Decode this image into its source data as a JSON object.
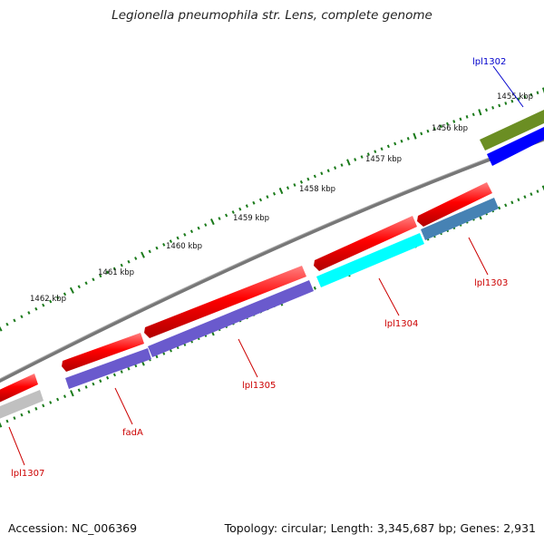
{
  "title": "Legionella pneumophila str. Lens, complete genome",
  "footer": {
    "accession": "Accession: NC_006369",
    "summary": "Topology: circular; Length: 3,345,687 bp; Genes: 2,931"
  },
  "scale_labels": [
    "1455 kbp",
    "1456 kbp",
    "1457 kbp",
    "1458 kbp",
    "1459 kbp",
    "1460 kbp",
    "1461 kbp",
    "1462 kbp"
  ],
  "gene_labels": [
    {
      "name": "lpl1302",
      "text": "lpl1302",
      "color": "#0000cc"
    },
    {
      "name": "lpl1303",
      "text": "lpl1303",
      "color": "#cc0000"
    },
    {
      "name": "lpl1304",
      "text": "lpl1304",
      "color": "#cc0000"
    },
    {
      "name": "lpl1305",
      "text": "lpl1305",
      "color": "#cc0000"
    },
    {
      "name": "fadA",
      "text": "fadA",
      "color": "#cc0000"
    },
    {
      "name": "lpl1307",
      "text": "lpl1307",
      "color": "#cc0000"
    }
  ],
  "colors": {
    "cds": "#ff0000",
    "backbone": "#777777",
    "ticks": "#1a7a1a",
    "gene_olive": "#6b8e23",
    "gene_blue": "#0000ff",
    "gene_steelblue": "#4682b4",
    "gene_cyan": "#00ffff",
    "gene_slateblue": "#6a5acd",
    "gene_silver": "#c0c0c0"
  }
}
